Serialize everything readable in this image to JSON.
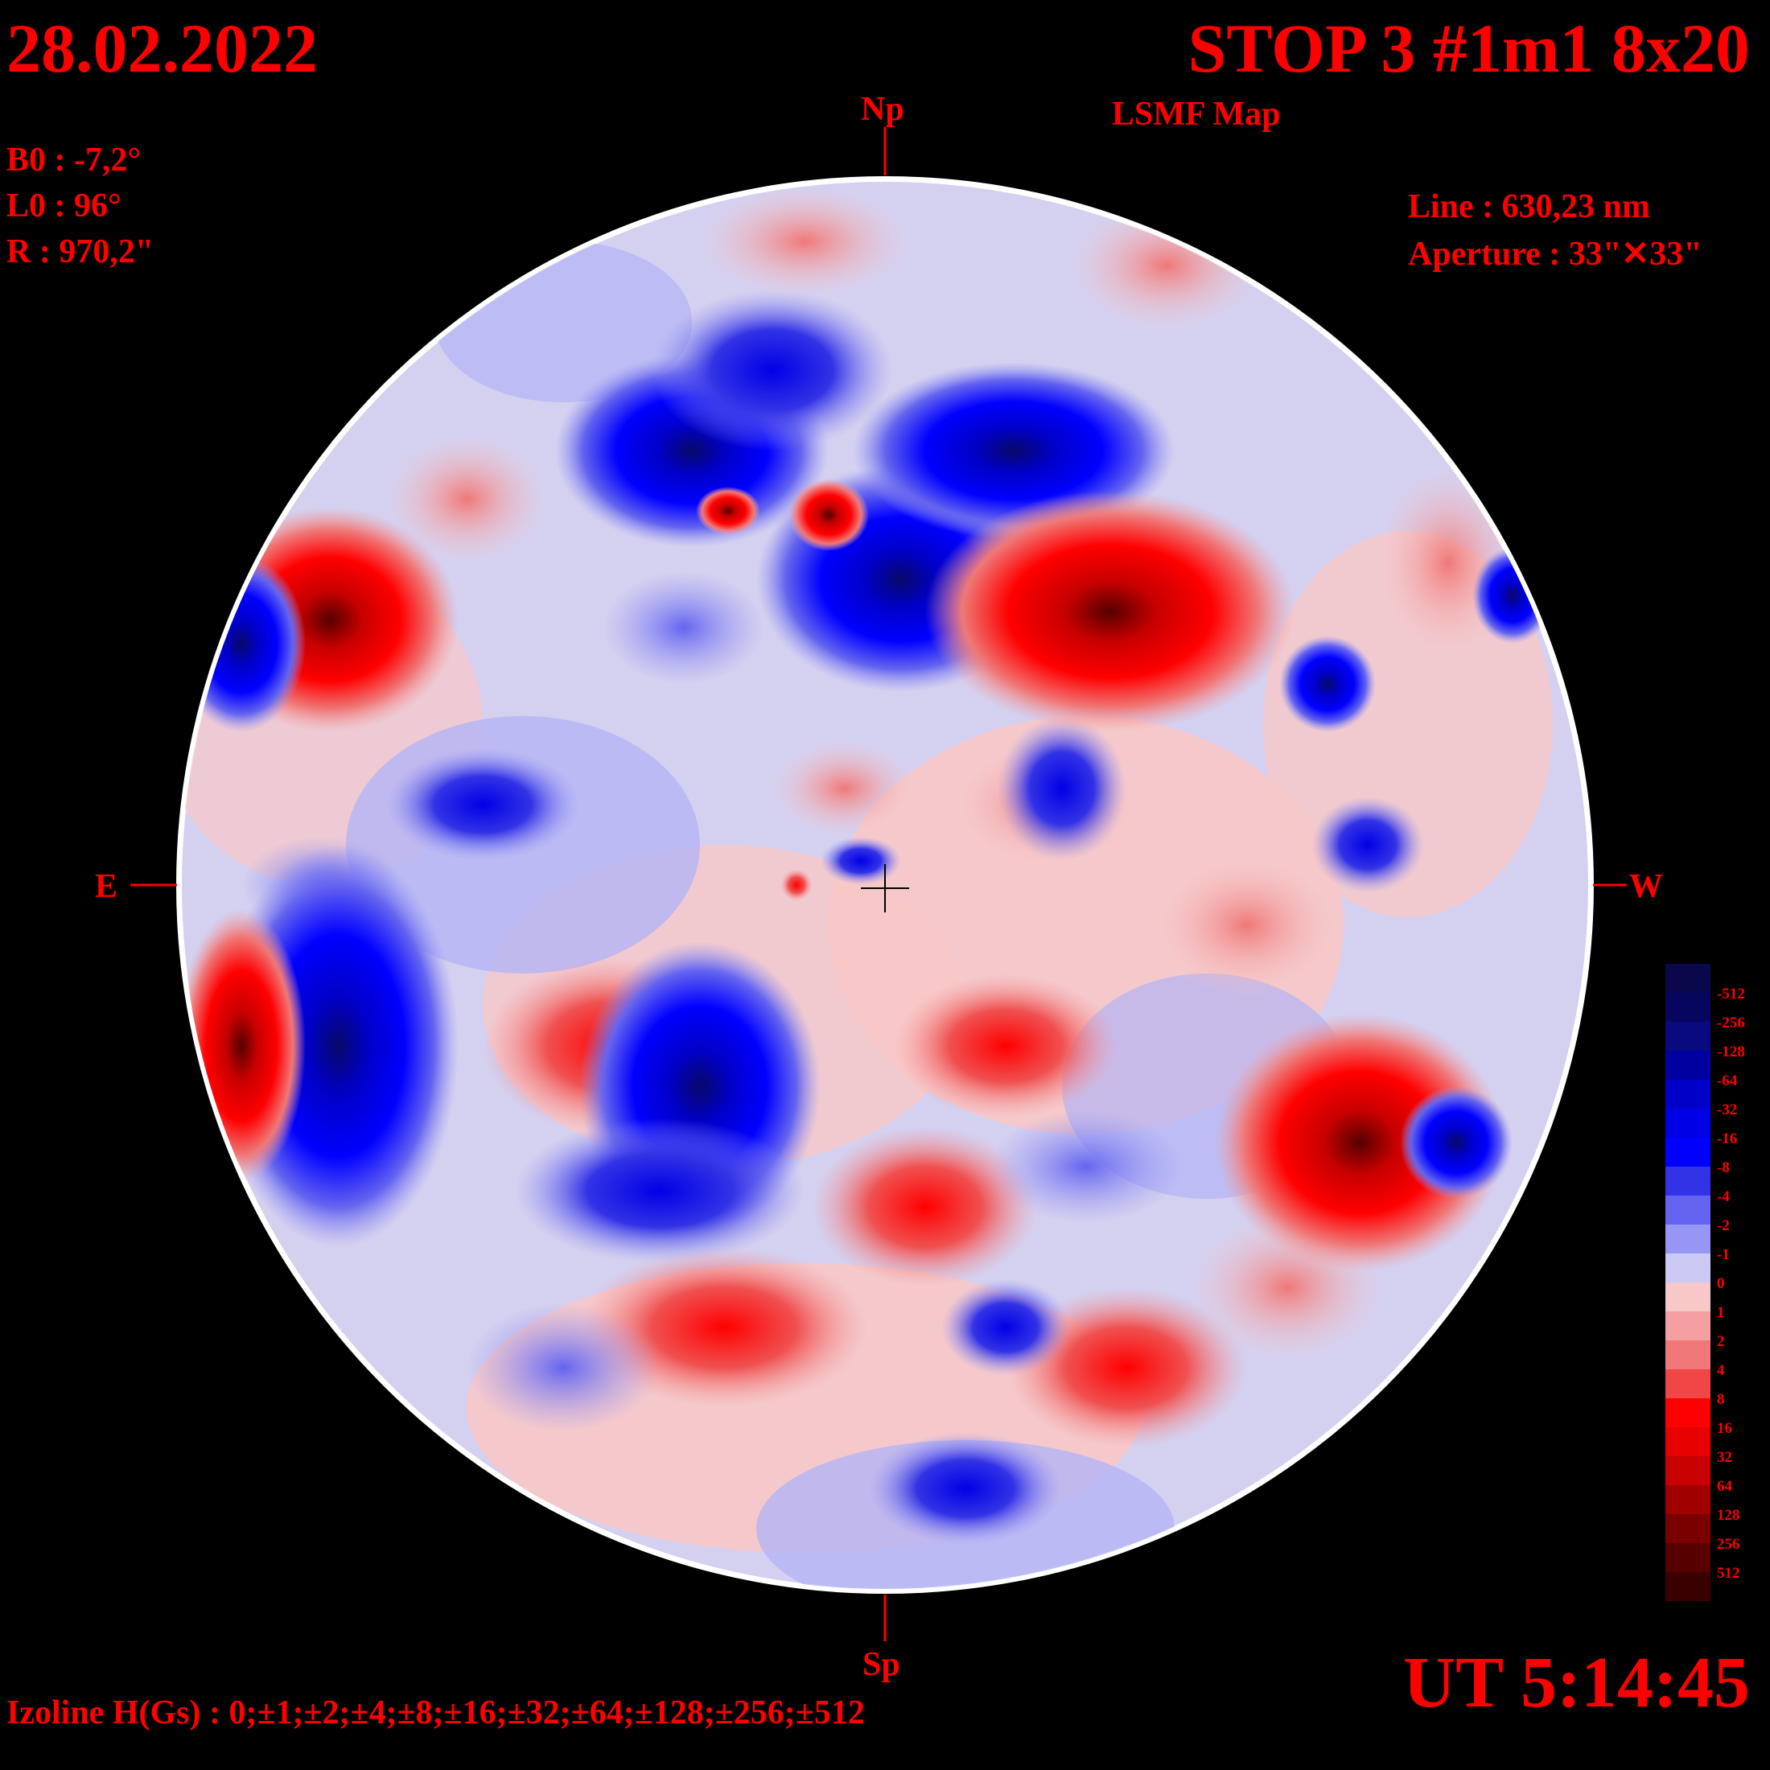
{
  "header": {
    "date": "28.02.2022",
    "title": "STOP 3 #1m1 8x20",
    "subtitle": "LSMF  Map"
  },
  "params": {
    "b0": "B0 : -7,2°",
    "l0": "L0 : 96°",
    "radius": "R  : 970,2\"",
    "line": "Line :  630,23 nm",
    "aperture": "Aperture : 33\"✕33\""
  },
  "footer": {
    "time": "UT 5:14:45",
    "izoline": "Izoline H(Gs) : 0;±1;±2;±4;±8;±16;±32;±64;±128;±256;±512"
  },
  "directions": {
    "north": "Np",
    "south": "Sp",
    "east": "E",
    "west": "W"
  },
  "colorbar": {
    "labels": [
      "-512",
      "-256",
      "-128",
      "-64",
      "-32",
      "-16",
      "-8",
      "-4",
      "-2",
      "-1",
      "0",
      "1",
      "2",
      "4",
      "8",
      "16",
      "32",
      "64",
      "128",
      "256",
      "512"
    ],
    "colors": [
      "#08084a",
      "#06065e",
      "#0a0a80",
      "#0000a0",
      "#0000c8",
      "#0000e6",
      "#0000ff",
      "#3232e6",
      "#6464f0",
      "#9696f5",
      "#cacaf5",
      "#f8c8c8",
      "#f5a0a0",
      "#f07878",
      "#f04646",
      "#ff0000",
      "#e60000",
      "#c80000",
      "#a00000",
      "#7a0000",
      "#560000",
      "#3a0000"
    ]
  },
  "colors": {
    "text": "#ff0000",
    "background": "#000000",
    "contour": "#ffffff"
  },
  "chart_data": {
    "type": "heatmap",
    "title": "STOP 3 #1m1 8x20",
    "subtitle": "LSMF  Map",
    "levels": [
      0,
      1,
      2,
      4,
      8,
      16,
      32,
      64,
      128,
      256,
      512
    ],
    "units": "Gs",
    "regions": [
      {
        "polarity": "negative",
        "strength": 64,
        "lon": -0.28,
        "lat": 0.52
      },
      {
        "polarity": "negative",
        "strength": 64,
        "lon": -0.05,
        "lat": 0.42
      },
      {
        "polarity": "negative",
        "strength": 32,
        "lon": 0.12,
        "lat": 0.6
      },
      {
        "polarity": "positive",
        "strength": 64,
        "lon": 0.24,
        "lat": 0.42
      },
      {
        "polarity": "positive",
        "strength": 32,
        "lon": -0.78,
        "lat": 0.44
      },
      {
        "polarity": "negative",
        "strength": 16,
        "lon": -0.92,
        "lat": 0.36
      },
      {
        "polarity": "negative",
        "strength": 64,
        "lon": -0.78,
        "lat": -0.2
      },
      {
        "polarity": "positive",
        "strength": 32,
        "lon": -0.92,
        "lat": -0.2
      },
      {
        "polarity": "negative",
        "strength": 16,
        "lon": -0.3,
        "lat": -0.3
      },
      {
        "polarity": "positive",
        "strength": 16,
        "lon": 0.65,
        "lat": -0.42
      },
      {
        "polarity": "negative",
        "strength": 16,
        "lon": 0.82,
        "lat": -0.36
      },
      {
        "polarity": "positive",
        "strength": 8,
        "lon": -0.2,
        "lat": -0.72
      }
    ]
  }
}
